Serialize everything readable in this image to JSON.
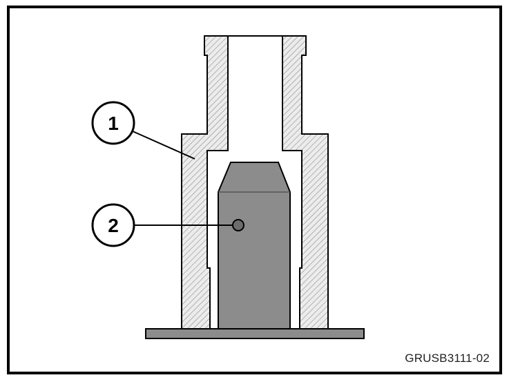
{
  "callouts": [
    {
      "number": "1",
      "target": "sleeve"
    },
    {
      "number": "2",
      "target": "piston-bore"
    }
  ],
  "image_code": "GRUSB3111-02",
  "colors": {
    "frame": "#000000",
    "section_fill": "#e6e6e6",
    "hatch": "#8a8a8a",
    "solid_part": "#8c8c8c",
    "base_plate": "#8c8c8c"
  }
}
